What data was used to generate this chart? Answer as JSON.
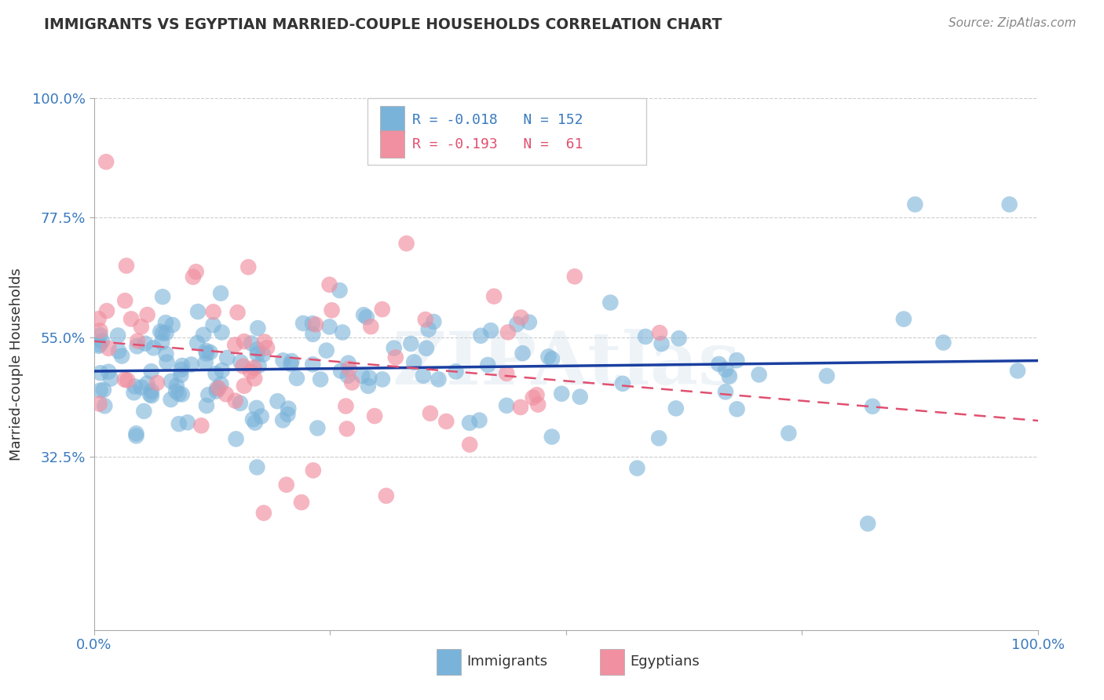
{
  "title": "IMMIGRANTS VS EGYPTIAN MARRIED-COUPLE HOUSEHOLDS CORRELATION CHART",
  "source": "Source: ZipAtlas.com",
  "ylabel": "Married-couple Households",
  "watermark": "ZIPAtlas",
  "bottom_legend": [
    "Immigrants",
    "Egyptians"
  ],
  "immigrants_R": -0.018,
  "immigrants_N": 152,
  "egyptians_R": -0.193,
  "egyptians_N": 61,
  "xlim": [
    0,
    1
  ],
  "ylim": [
    0,
    1
  ],
  "ytick_vals": [
    0.325,
    0.55,
    0.775,
    1.0
  ],
  "ytick_labels": [
    "32.5%",
    "55.0%",
    "77.5%",
    "100.0%"
  ],
  "xtick_vals": [
    0.0,
    0.25,
    0.5,
    0.75,
    1.0
  ],
  "xtick_labels": [
    "0.0%",
    "",
    "",
    "",
    "100.0%"
  ],
  "grid_color": "#cccccc",
  "bg_color": "#ffffff",
  "immigrant_scatter_color": "#7ab3d9",
  "egyptian_scatter_color": "#f090a0",
  "immigrant_line_color": "#1a3fa0",
  "egyptian_line_color": "#e05070",
  "tick_label_color": "#3a7abf",
  "title_color": "#333333",
  "source_color": "#888888",
  "ylabel_color": "#333333"
}
